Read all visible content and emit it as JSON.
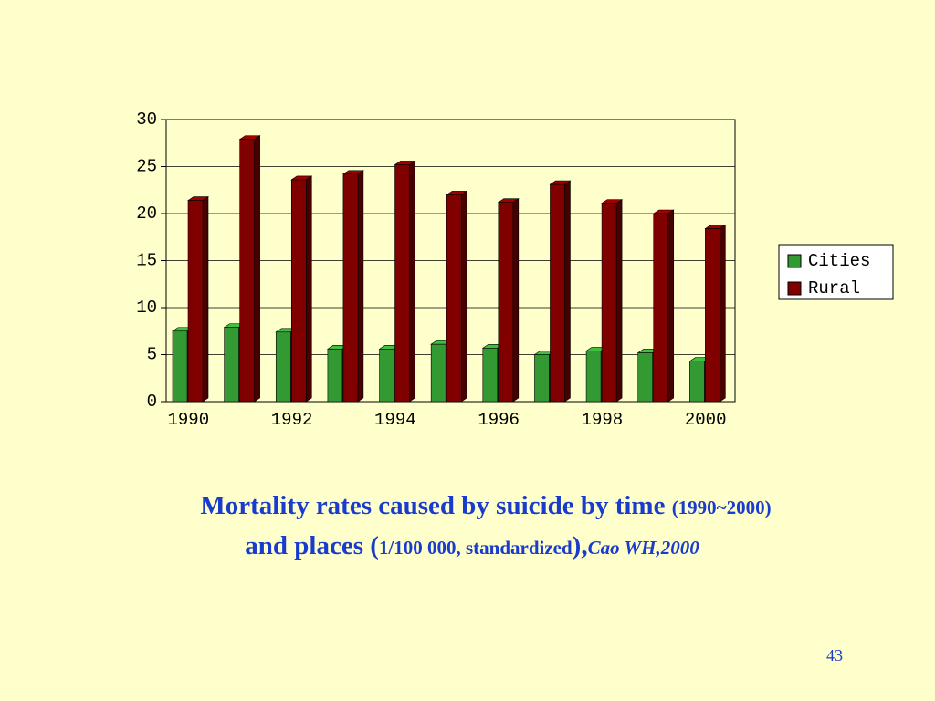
{
  "chart_data": {
    "type": "bar3d",
    "categories": [
      "1990",
      null,
      "1992",
      null,
      "1994",
      null,
      "1996",
      null,
      "1998",
      null,
      "2000"
    ],
    "series": [
      {
        "name": "Cities",
        "color": "#339933",
        "values": [
          7.5,
          7.9,
          7.4,
          5.6,
          5.6,
          6.1,
          5.7,
          5.0,
          5.4,
          5.2,
          4.3
        ]
      },
      {
        "name": "Rural",
        "color": "#800000",
        "values": [
          21.4,
          27.9,
          23.6,
          24.2,
          25.2,
          22.0,
          21.2,
          23.1,
          21.1,
          20.0,
          18.4
        ]
      }
    ],
    "ylim": [
      0,
      30
    ],
    "yticks": [
      0,
      5,
      10,
      15,
      20,
      25,
      30
    ],
    "grid": true,
    "legend": "right"
  },
  "caption": {
    "line1_main": "Mortality rates caused by suicide by time",
    "line1_small": "(1990~2000)",
    "line2_main": "and places (",
    "line2_small": "1/100 000, standardized",
    "line2_close": "),",
    "line2_italic": "Cao WH,2000"
  },
  "page_number": "43"
}
